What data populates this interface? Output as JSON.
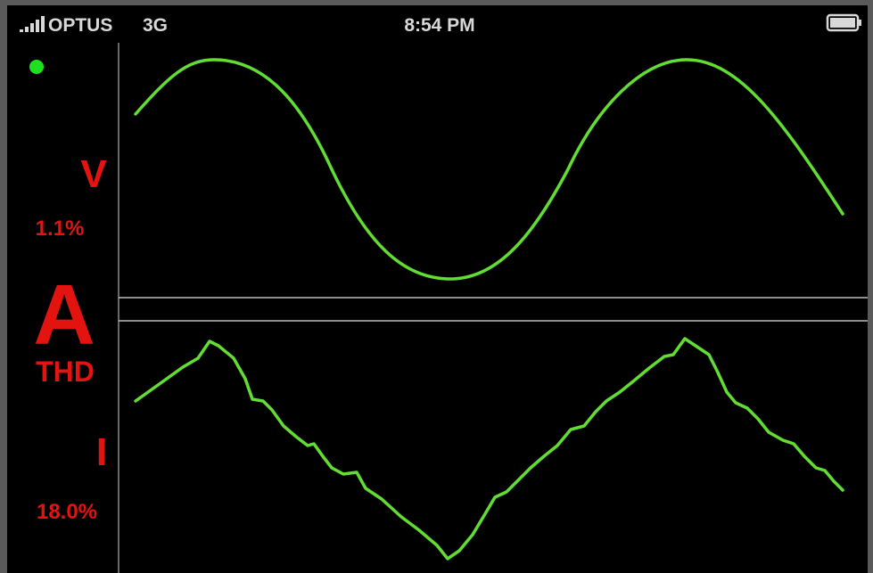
{
  "status_bar": {
    "carrier": "OPTUS",
    "network": "3G",
    "time": "8:54 PM"
  },
  "voltage": {
    "label": "V",
    "thd": "1.1%"
  },
  "mode": "A",
  "thd_label": "THD",
  "current": {
    "label": "I",
    "thd": "18.0%"
  }
}
